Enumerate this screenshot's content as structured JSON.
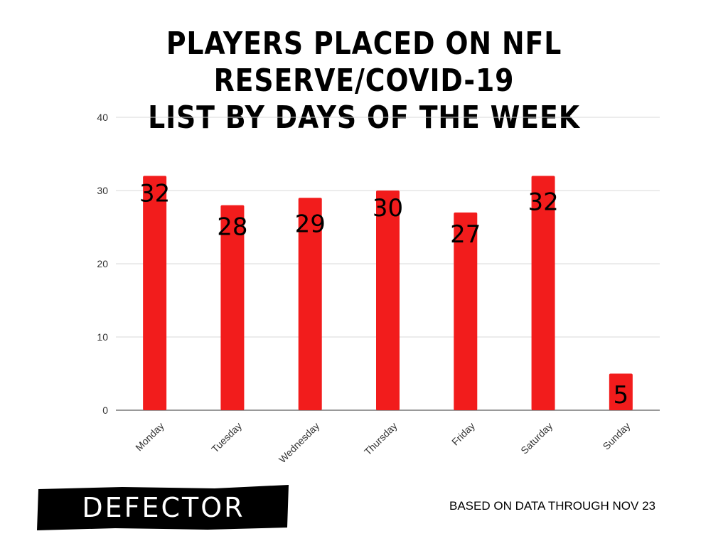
{
  "title_line1": "PLAYERS PLACED ON NFL RESERVE/COVID-19",
  "title_line2": "LIST BY DAYS OF THE WEEK",
  "logo_text": "DEFECTOR",
  "footnote": "BASED ON DATA THROUGH NOV 23",
  "colors": {
    "bar": "#f21c1c",
    "grid": "#d9d9d9",
    "axis": "#333333",
    "text": "#000000"
  },
  "chart_data": {
    "type": "bar",
    "title": "PLAYERS PLACED ON NFL RESERVE/COVID-19 LIST BY DAYS OF THE WEEK",
    "categories": [
      "Monday",
      "Tuesday",
      "Wednesday",
      "Thursday",
      "Friday",
      "Saturday",
      "Sunday"
    ],
    "values": [
      32,
      28,
      29,
      30,
      27,
      32,
      5
    ],
    "ylim": [
      0,
      40
    ],
    "yticks": [
      0,
      10,
      20,
      30,
      40
    ],
    "xlabel": "",
    "ylabel": "",
    "grid": true,
    "legend": "none"
  }
}
